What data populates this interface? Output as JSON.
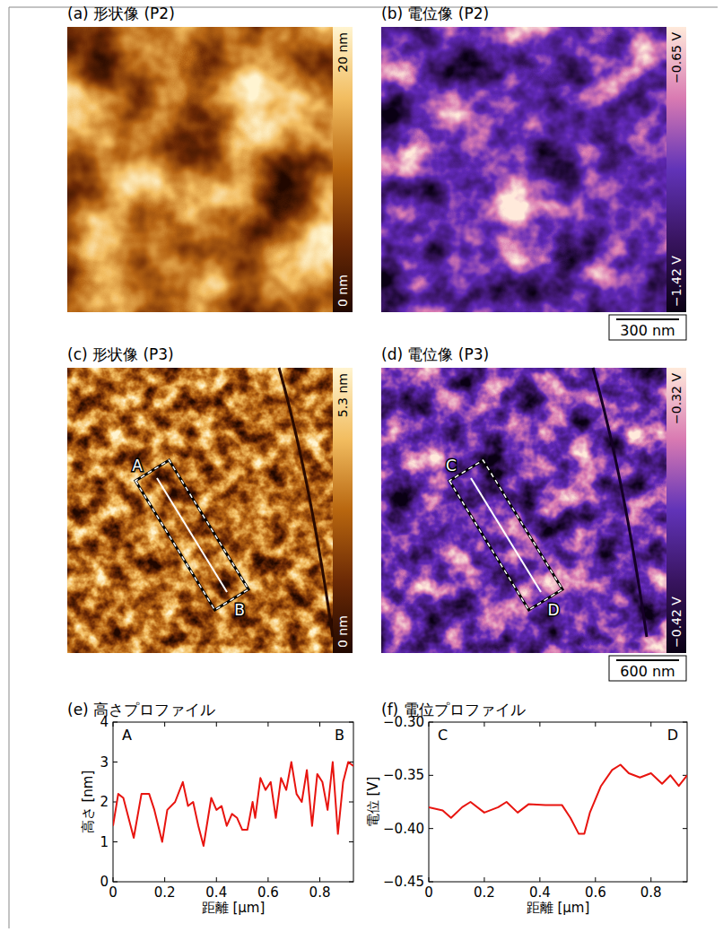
{
  "chart_data": [
    {
      "type": "image",
      "title": "(a) 形状像 (P2)",
      "colorbar": {
        "range": [
          0,
          20
        ],
        "ticks": [
          {
            "value": 0,
            "label": "0 nm"
          },
          {
            "value": 20,
            "label": "20 nm"
          }
        ]
      },
      "color": "topography"
    },
    {
      "type": "image",
      "title": "(b) 電位像 (P2)",
      "colorbar": {
        "range": [
          -1.42,
          -0.65
        ],
        "ticks": [
          {
            "value": -1.42,
            "label": "−1.42 V"
          },
          {
            "value": -0.65,
            "label": "−0.65 V"
          }
        ]
      },
      "color": "potential",
      "scale_bar": "300 nm"
    },
    {
      "type": "image",
      "title": "(c) 形状像 (P3)",
      "colorbar": {
        "range": [
          0,
          5.3
        ],
        "ticks": [
          {
            "value": 0,
            "label": "0 nm"
          },
          {
            "value": 5.3,
            "label": "5.3 nm"
          }
        ]
      },
      "color": "topography",
      "annotations": [
        "A",
        "B"
      ]
    },
    {
      "type": "image",
      "title": "(d) 電位像 (P3)",
      "colorbar": {
        "range": [
          -0.42,
          -0.32
        ],
        "ticks": [
          {
            "value": -0.42,
            "label": "−0.42 V"
          },
          {
            "value": -0.32,
            "label": "−0.32 V"
          }
        ]
      },
      "color": "potential",
      "annotations": [
        "C",
        "D"
      ],
      "scale_bar": "600 nm"
    },
    {
      "type": "line",
      "title": "(e) 高さプロファイル",
      "x_label": "距離 [μm]",
      "y_label": "高さ [nm]",
      "annotations": [
        "A",
        "B"
      ],
      "color": "#e8140f",
      "x": [
        0,
        0.02,
        0.04,
        0.08,
        0.11,
        0.14,
        0.16,
        0.19,
        0.21,
        0.24,
        0.27,
        0.29,
        0.31,
        0.33,
        0.35,
        0.38,
        0.4,
        0.42,
        0.44,
        0.46,
        0.48,
        0.5,
        0.52,
        0.54,
        0.55,
        0.57,
        0.59,
        0.61,
        0.63,
        0.65,
        0.67,
        0.69,
        0.71,
        0.73,
        0.75,
        0.77,
        0.79,
        0.81,
        0.83,
        0.85,
        0.87,
        0.89,
        0.91,
        0.93
      ],
      "values": [
        1.4,
        2.2,
        2.1,
        1.1,
        2.2,
        2.2,
        1.8,
        1.0,
        1.8,
        2.0,
        2.5,
        1.9,
        2.0,
        1.4,
        0.9,
        2.1,
        1.8,
        1.9,
        1.4,
        1.7,
        1.6,
        1.3,
        1.3,
        2.0,
        1.6,
        2.6,
        2.3,
        2.5,
        1.6,
        2.6,
        2.3,
        3.0,
        2.2,
        2.0,
        2.8,
        1.4,
        2.7,
        2.5,
        1.8,
        3.0,
        1.2,
        2.5,
        3.0,
        2.9
      ],
      "xlim": [
        0,
        0.93
      ],
      "xticks": [
        0,
        0.2,
        0.4,
        0.6,
        0.8
      ],
      "ylim": [
        0,
        4
      ],
      "yticks": [
        0,
        1,
        2,
        3,
        4
      ]
    },
    {
      "type": "line",
      "title": "(f) 電位プロファイル",
      "x_label": "距離 [μm]",
      "y_label": "電位 [V]",
      "annotations": [
        "C",
        "D"
      ],
      "color": "#e8140f",
      "x": [
        0,
        0.05,
        0.08,
        0.12,
        0.15,
        0.2,
        0.25,
        0.28,
        0.32,
        0.36,
        0.42,
        0.48,
        0.51,
        0.54,
        0.56,
        0.58,
        0.62,
        0.66,
        0.69,
        0.72,
        0.76,
        0.8,
        0.84,
        0.87,
        0.9,
        0.93
      ],
      "values": [
        -0.38,
        -0.383,
        -0.39,
        -0.38,
        -0.375,
        -0.385,
        -0.38,
        -0.375,
        -0.385,
        -0.377,
        -0.378,
        -0.378,
        -0.39,
        -0.405,
        -0.405,
        -0.385,
        -0.36,
        -0.345,
        -0.34,
        -0.348,
        -0.352,
        -0.348,
        -0.358,
        -0.35,
        -0.36,
        -0.35
      ],
      "xlim": [
        0,
        0.93
      ],
      "xticks": [
        0,
        0.2,
        0.4,
        0.6,
        0.8
      ],
      "ylim": [
        -0.45,
        -0.3
      ],
      "yticks": [
        {
          "value": -0.45,
          "label": "−0.45"
        },
        {
          "value": -0.4,
          "label": "−0.40"
        },
        {
          "value": -0.35,
          "label": "−0.35"
        },
        {
          "value": -0.3,
          "label": "−0.30"
        }
      ]
    }
  ]
}
